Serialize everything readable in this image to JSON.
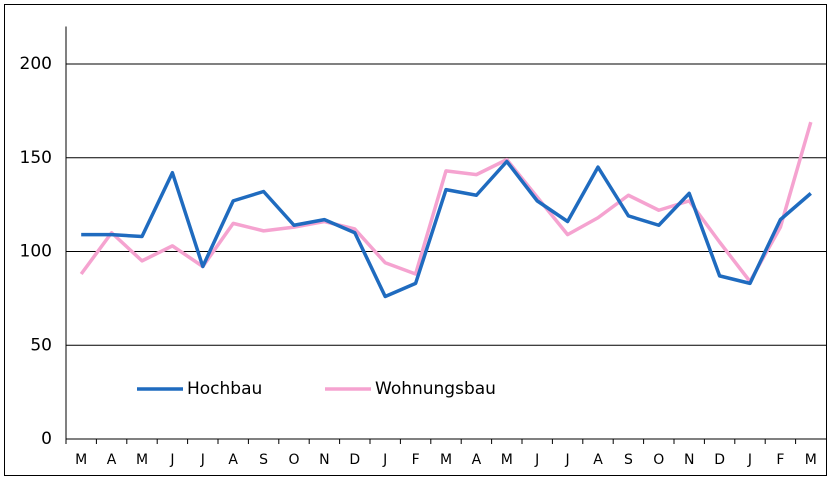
{
  "chart_data": {
    "type": "line",
    "categories": [
      "M",
      "A",
      "M",
      "J",
      "J",
      "A",
      "S",
      "O",
      "N",
      "D",
      "J",
      "F",
      "M",
      "A",
      "M",
      "J",
      "J",
      "A",
      "S",
      "O",
      "N",
      "D",
      "J",
      "F",
      "M"
    ],
    "series": [
      {
        "name": "Hochbau",
        "color": "#1f6bbf",
        "values": [
          109,
          109,
          108,
          142,
          92,
          127,
          132,
          114,
          117,
          110,
          76,
          83,
          133,
          130,
          148,
          127,
          116,
          145,
          119,
          114,
          131,
          87,
          83,
          117,
          131
        ]
      },
      {
        "name": "Wohnungsbau",
        "color": "#f5a3d0",
        "values": [
          88,
          110,
          95,
          103,
          92,
          115,
          111,
          113,
          116,
          112,
          94,
          88,
          143,
          141,
          149,
          129,
          109,
          118,
          130,
          122,
          127,
          105,
          84,
          113,
          169
        ]
      }
    ],
    "ylim": [
      0,
      220
    ],
    "yticks": [
      0,
      50,
      100,
      150,
      200
    ],
    "grid": true,
    "legend": "bottom-left"
  }
}
